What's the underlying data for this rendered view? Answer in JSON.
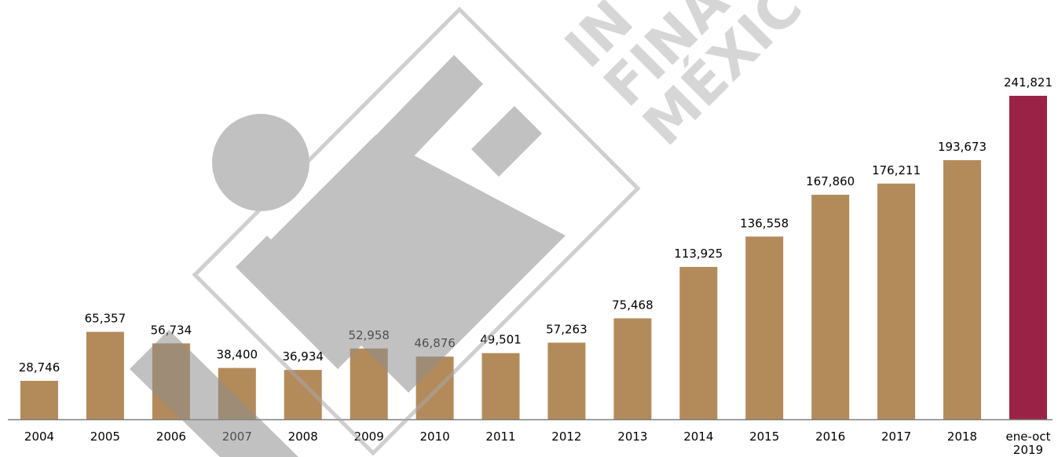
{
  "chart_data": {
    "type": "bar",
    "title": "",
    "xlabel": "",
    "ylabel": "",
    "ylim": [
      0,
      260000
    ],
    "grid": false,
    "legend": "none",
    "categories": [
      "2004",
      "2005",
      "2006",
      "2007",
      "2008",
      "2009",
      "2010",
      "2011",
      "2012",
      "2013",
      "2014",
      "2015",
      "2016",
      "2017",
      "2018",
      "ene-oct\n2019"
    ],
    "values": [
      28746,
      65357,
      56734,
      38400,
      36934,
      52958,
      46876,
      49501,
      57263,
      75468,
      113925,
      136558,
      167860,
      176211,
      193673,
      241821
    ],
    "value_labels": [
      "28,746",
      "65,357",
      "56,734",
      "38,400",
      "36,934",
      "52,958",
      "46,876",
      "49,501",
      "57,263",
      "75,468",
      "113,925",
      "136,558",
      "167,860",
      "176,211",
      "193,673",
      "241,821"
    ],
    "colors": {
      "default_bar": "#b38b5b",
      "highlight_bar": "#9b2247",
      "highlight_index": 15,
      "axis": "#7f7f7f",
      "label_text": "#000000",
      "watermark": "#a6a6a6"
    }
  }
}
